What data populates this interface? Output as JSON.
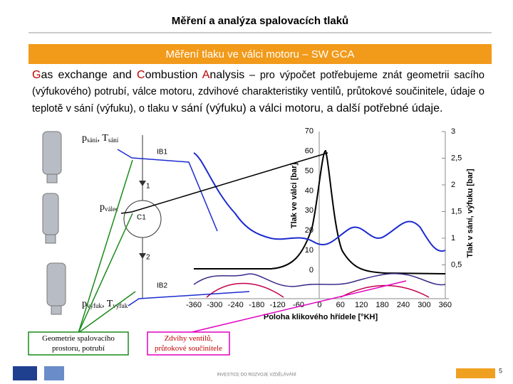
{
  "header": {
    "title": "Měření a analýza spalovacích tlaků"
  },
  "banner": {
    "text": "Měření tlaku ve válci motoru – SW GCA"
  },
  "paragraph": {
    "segments": [
      "G",
      "as exchange and ",
      "C",
      "ombustion ",
      "A",
      "nalysis",
      " – pro výpočet potřebujeme znát geometrii sacího (výfukového) potrubí, válce motoru, zdvihové charakteristiky ventilů, průtokové součinitele, údaje o teplotě v sání (výfuku), o tlaku ",
      "v sání (výfuku) a válci motoru, a další potřebné údaje."
    ]
  },
  "diagram": {
    "intake_label": [
      "p",
      "sání",
      ", T",
      "sání"
    ],
    "cylinder_label": [
      "p",
      "válec"
    ],
    "exhaust_label": [
      "p",
      "výfuk",
      ", T",
      "výfuk"
    ],
    "ib1": "IB1",
    "node1": "1",
    "c1": "C1",
    "node2": "2",
    "ib2": "IB2"
  },
  "graph": {
    "y_label": "Tlak ve válci [bar]",
    "y2_label": "Tlak v sání, výfuku [bar]",
    "x_label": "Poloha klikového hřídele [°KH]",
    "yticks": [
      "0",
      "10",
      "20",
      "30",
      "40",
      "50",
      "60",
      "70"
    ],
    "y2ticks": [
      "0,5",
      "1",
      "1,5",
      "2",
      "2,5",
      "3"
    ],
    "xticks": [
      "-360",
      "-300",
      "-240",
      "-180",
      "-120",
      "-60",
      "0",
      "60",
      "120",
      "180",
      "240",
      "300",
      "360"
    ]
  },
  "boxes": {
    "geometry": "Geometrie spalovacího prostoru, potrubí",
    "valves": "Zdvihy ventilů, průtokové součinitele"
  },
  "footer": {
    "text": "INVESTICE DO ROZVOJE VZDĚLÁVÁNÍ",
    "page": "5"
  }
}
